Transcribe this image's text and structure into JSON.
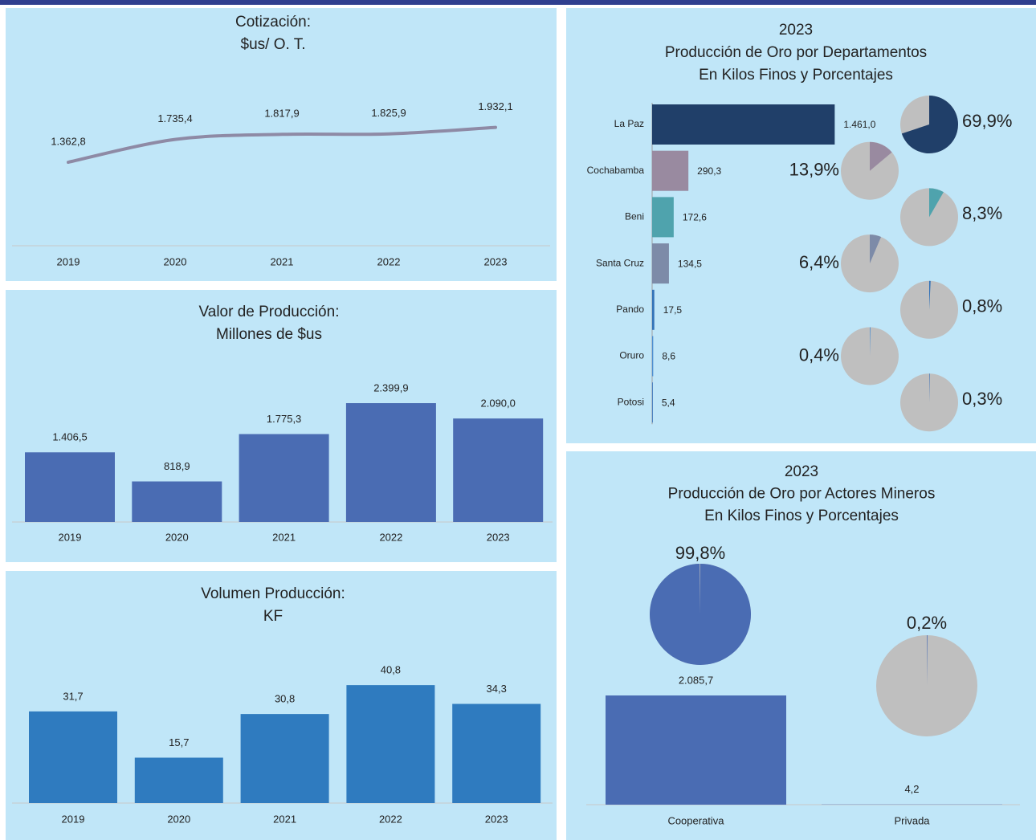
{
  "chart_data": [
    {
      "type": "line",
      "title": [
        "Cotización:",
        "$us/ O. T."
      ],
      "categories": [
        "2019",
        "2020",
        "2021",
        "2022",
        "2023"
      ],
      "values": [
        1362.8,
        1735.4,
        1817.9,
        1825.9,
        1932.1
      ],
      "value_labels": [
        "1.362,8",
        "1.735,4",
        "1.817,9",
        "1.825,9",
        "1.932,1"
      ],
      "color": "#8e8aa5",
      "ylim": [
        0,
        2700
      ]
    },
    {
      "type": "bar",
      "title": [
        "Valor de Producción:",
        "Millones de $us"
      ],
      "categories": [
        "2019",
        "2020",
        "2021",
        "2022",
        "2023"
      ],
      "values": [
        1406.5,
        818.9,
        1775.3,
        2399.9,
        2090.0
      ],
      "value_labels": [
        "1.406,5",
        "818,9",
        "1.775,3",
        "2.399,9",
        "2.090,0"
      ],
      "color": "#4a6cb3",
      "ylim": [
        0,
        3000
      ]
    },
    {
      "type": "bar",
      "title": [
        "Volumen Producción:",
        "KF"
      ],
      "categories": [
        "2019",
        "2020",
        "2021",
        "2022",
        "2023"
      ],
      "values": [
        31.7,
        15.7,
        30.8,
        40.8,
        34.3
      ],
      "value_labels": [
        "31,7",
        "15,7",
        "30,8",
        "40,8",
        "34,3"
      ],
      "color": "#2f7bbf",
      "ylim": [
        0,
        50
      ]
    },
    {
      "type": "bar",
      "orientation": "horizontal",
      "title": [
        "2023",
        "Producción de Oro por Departamentos",
        "En Kilos Finos y Porcentajes"
      ],
      "categories": [
        "La Paz",
        "Cochabamba",
        "Beni",
        "Santa Cruz",
        "Pando",
        "Oruro",
        "Potosi"
      ],
      "values": [
        1461.0,
        290.3,
        172.6,
        134.5,
        17.5,
        8.6,
        5.4
      ],
      "value_labels": [
        "1.461,0",
        "290,3",
        "172,6",
        "134,5",
        "17,5",
        "8,6",
        "5,4"
      ],
      "percentages": [
        69.9,
        13.9,
        8.3,
        6.4,
        0.8,
        0.4,
        0.3
      ],
      "percentage_labels": [
        "69,9%",
        "13,9%",
        "8,3%",
        "6,4%",
        "0,8%",
        "0,4%",
        "0,3%"
      ],
      "colors": [
        "#203f69",
        "#998aa0",
        "#4fa3ad",
        "#7d8ba8",
        "#3373b8",
        "#4f8fd0",
        "#3a6fb5"
      ],
      "pie_rest_color": "#bfbfbf",
      "xlim": [
        0,
        1600
      ]
    },
    {
      "type": "bar",
      "title": [
        "2023",
        "Producción de Oro por Actores Mineros",
        "En Kilos Finos y Porcentajes"
      ],
      "categories": [
        "Cooperativa",
        "Privada"
      ],
      "values": [
        2085.7,
        4.2
      ],
      "value_labels": [
        "2.085,7",
        "4,2"
      ],
      "percentages": [
        99.8,
        0.2
      ],
      "percentage_labels": [
        "99,8%",
        "0,2%"
      ],
      "color": "#4a6cb3",
      "pie_rest_color": "#bfbfbf",
      "ylim": [
        0,
        2500
      ]
    }
  ]
}
